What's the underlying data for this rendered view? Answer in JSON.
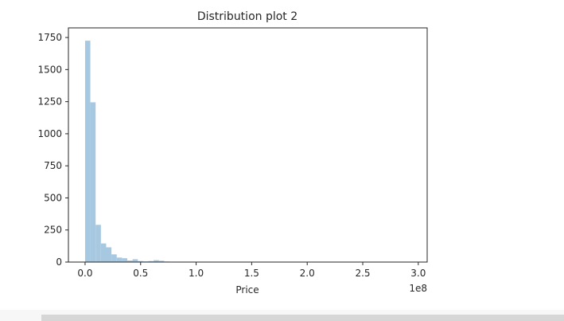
{
  "chart_data": {
    "type": "bar",
    "title": "Distribution plot 2",
    "xlabel": "Price",
    "ylabel": "",
    "x_offset_text": "1e8",
    "bar_color": "#a6c8e0",
    "xlim": [
      -0.15,
      3.08
    ],
    "ylim": [
      0,
      1825
    ],
    "x_ticks": [
      0.0,
      0.5,
      1.0,
      1.5,
      2.0,
      2.5,
      3.0
    ],
    "x_tick_labels": [
      "0.0",
      "0.5",
      "1.0",
      "1.5",
      "2.0",
      "2.5",
      "3.0"
    ],
    "y_ticks": [
      0,
      250,
      500,
      750,
      1000,
      1250,
      1500,
      1750
    ],
    "y_tick_labels": [
      "0",
      "250",
      "500",
      "750",
      "1000",
      "1250",
      "1500",
      "1750"
    ],
    "bin_width": 0.0475,
    "bin_start": 0.0,
    "values": [
      1725,
      1245,
      290,
      145,
      115,
      60,
      35,
      30,
      12,
      22,
      8,
      5,
      8,
      15,
      10,
      4,
      2,
      1,
      1,
      1,
      1,
      1,
      1,
      1,
      0,
      1,
      0,
      0,
      1,
      0,
      0,
      1,
      0,
      0,
      0,
      0,
      0,
      0,
      0,
      0,
      0,
      0,
      0,
      0,
      0,
      0,
      0,
      0,
      0,
      0,
      0,
      0,
      0,
      0,
      0,
      0,
      0,
      0,
      0,
      0,
      0,
      0,
      1
    ],
    "grid": false
  }
}
